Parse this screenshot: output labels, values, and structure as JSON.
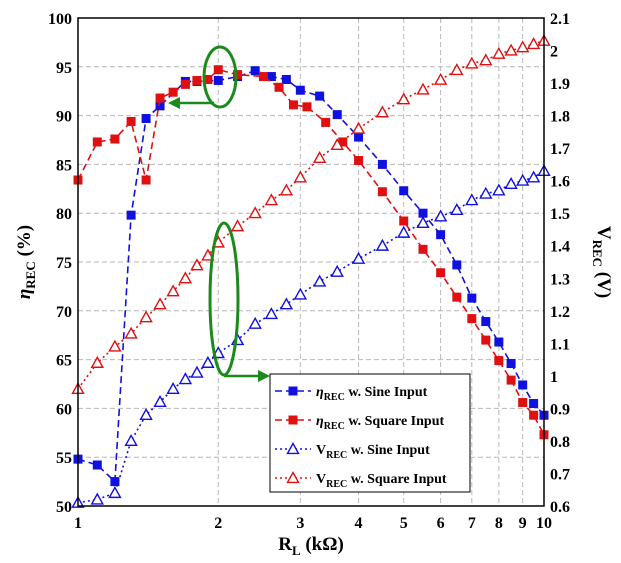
{
  "chart_data": {
    "type": "line",
    "x_scale": "log",
    "xlim": [
      1,
      10
    ],
    "x_ticks": [
      1,
      2,
      3,
      4,
      5,
      6,
      7,
      8,
      9,
      10
    ],
    "xlabel": {
      "main": "R",
      "sub": "L",
      "unit": " (kΩ)"
    },
    "ylabel_left": {
      "main": "η",
      "sub": "REC",
      "unit": " (%)"
    },
    "ylabel_right": {
      "main": "V",
      "sub": "REC",
      "unit": " (V)"
    },
    "y_left_lim": [
      50,
      100
    ],
    "y_left_ticks": [
      50,
      55,
      60,
      65,
      70,
      75,
      80,
      85,
      90,
      95,
      100
    ],
    "y_right_lim": [
      0.6,
      2.1
    ],
    "y_right_ticks": [
      "0.6",
      "0.7",
      "0.8",
      "0.9",
      "1",
      "1.1",
      "1.2",
      "1.3",
      "1.4",
      "1.5",
      "1.6",
      "1.7",
      "1.8",
      "1.9",
      "2",
      "2.1"
    ],
    "grid": true,
    "legend_position": "bottom-center",
    "series": [
      {
        "name": "η_REC w. Sine Input",
        "label_main": "η",
        "label_sub": "REC",
        "label_rest": " w. Sine Input",
        "axis": "left",
        "color": "#1010e0",
        "marker": "square",
        "filled": true,
        "dash": "7,4",
        "x": [
          1,
          1.1,
          1.2,
          1.3,
          1.4,
          1.5,
          1.7,
          1.8,
          2,
          2.2,
          2.4,
          2.6,
          2.8,
          3,
          3.3,
          3.6,
          4,
          4.5,
          5,
          5.5,
          6,
          6.5,
          7,
          7.5,
          8,
          8.5,
          9,
          9.5,
          10
        ],
        "y": [
          54.8,
          54.2,
          52.5,
          79.8,
          89.7,
          91.0,
          93.5,
          93.5,
          93.6,
          94.0,
          94.6,
          94.0,
          93.7,
          92.6,
          92.0,
          90.1,
          87.8,
          85.0,
          82.3,
          80.0,
          77.8,
          74.7,
          71.3,
          68.9,
          66.8,
          64.6,
          62.4,
          60.5,
          59.3
        ]
      },
      {
        "name": "η_REC w. Square Input",
        "label_main": "η",
        "label_sub": "REC",
        "label_rest": " w. Square Input",
        "axis": "left",
        "color": "#e01010",
        "marker": "square",
        "filled": true,
        "dash": "7,4",
        "x": [
          1,
          1.1,
          1.2,
          1.3,
          1.4,
          1.5,
          1.6,
          1.7,
          1.8,
          1.9,
          2,
          2.2,
          2.5,
          2.7,
          2.9,
          3.1,
          3.4,
          3.7,
          4,
          4.5,
          5,
          5.5,
          6,
          6.5,
          7,
          7.5,
          8,
          8.5,
          9,
          9.5,
          10
        ],
        "y": [
          83.4,
          87.3,
          87.6,
          89.4,
          83.4,
          91.8,
          92.4,
          93.2,
          93.6,
          93.7,
          94.7,
          94.2,
          94.0,
          92.9,
          91.1,
          90.9,
          89.3,
          87.3,
          85.4,
          82.2,
          79.2,
          76.3,
          73.9,
          71.4,
          69.2,
          67.0,
          64.9,
          62.9,
          60.6,
          59.3,
          57.3
        ]
      },
      {
        "name": "V_REC w. Sine Input",
        "label_main": "V",
        "label_sub": "REC",
        "label_rest": " w. Sine Input",
        "axis": "right",
        "color": "#1010e0",
        "marker": "triangle",
        "filled": false,
        "dash": "2,3",
        "x": [
          1,
          1.1,
          1.2,
          1.3,
          1.4,
          1.5,
          1.6,
          1.7,
          1.8,
          1.9,
          2,
          2.2,
          2.4,
          2.6,
          2.8,
          3,
          3.3,
          3.6,
          4,
          4.5,
          5,
          5.5,
          6,
          6.5,
          7,
          7.5,
          8,
          8.5,
          9,
          9.5,
          10
        ],
        "y": [
          0.61,
          0.62,
          0.64,
          0.8,
          0.88,
          0.92,
          0.96,
          0.99,
          1.01,
          1.04,
          1.07,
          1.11,
          1.16,
          1.19,
          1.22,
          1.25,
          1.29,
          1.32,
          1.36,
          1.4,
          1.44,
          1.47,
          1.49,
          1.51,
          1.54,
          1.56,
          1.57,
          1.59,
          1.6,
          1.61,
          1.63
        ]
      },
      {
        "name": "V_REC w. Square Input",
        "label_main": "V",
        "label_sub": "REC",
        "label_rest": " w. Square Input",
        "axis": "right",
        "color": "#e01010",
        "marker": "triangle",
        "filled": false,
        "dash": "2,3",
        "x": [
          1,
          1.1,
          1.2,
          1.3,
          1.4,
          1.5,
          1.6,
          1.7,
          1.8,
          1.9,
          2,
          2.2,
          2.4,
          2.6,
          2.8,
          3,
          3.3,
          3.6,
          4,
          4.5,
          5,
          5.5,
          6,
          6.5,
          7,
          7.5,
          8,
          8.5,
          9,
          9.5,
          10
        ],
        "y": [
          0.96,
          1.04,
          1.09,
          1.13,
          1.18,
          1.22,
          1.26,
          1.3,
          1.34,
          1.37,
          1.41,
          1.46,
          1.5,
          1.54,
          1.57,
          1.61,
          1.67,
          1.71,
          1.76,
          1.81,
          1.85,
          1.88,
          1.91,
          1.94,
          1.96,
          1.97,
          1.99,
          2.0,
          2.01,
          2.02,
          2.03
        ]
      }
    ]
  }
}
